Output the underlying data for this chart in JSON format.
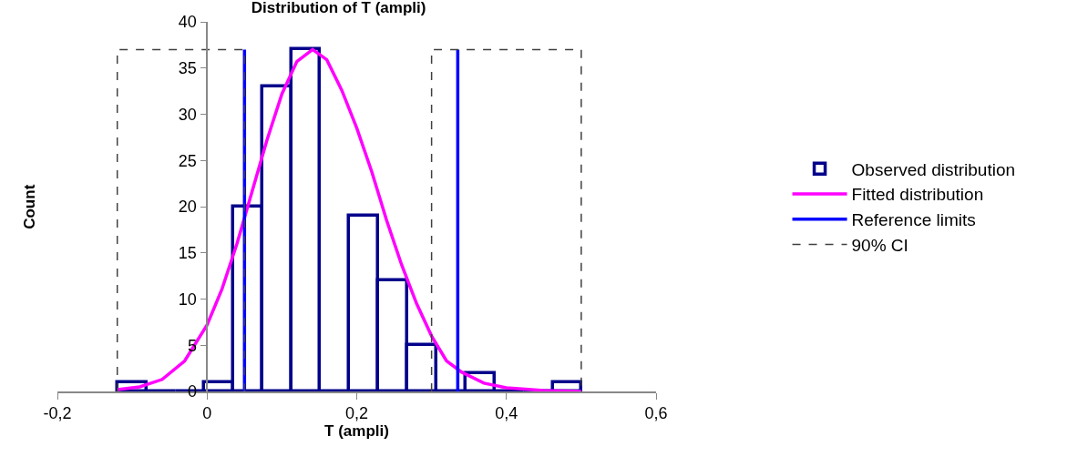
{
  "chart_data": {
    "type": "histogram",
    "title": "Distribution of T (ampli)",
    "xlabel": "T (ampli)",
    "ylabel": "Count",
    "xlim": [
      -0.2,
      0.6
    ],
    "xticks": [
      {
        "value": -0.2,
        "label": "-0,2"
      },
      0,
      {
        "value": 0.2,
        "label": "0,2"
      },
      {
        "value": 0.4,
        "label": "0,4"
      },
      {
        "value": 0.6,
        "label": "0,6"
      }
    ],
    "ylim": [
      0,
      40
    ],
    "yticks": [
      0,
      5,
      10,
      15,
      20,
      25,
      30,
      35,
      40
    ],
    "legend": "right",
    "series": [
      {
        "name": "Observed distribution",
        "color": "#00008b",
        "bins": [
          -0.12,
          -0.081,
          -0.042,
          -0.004,
          0.035,
          0.074,
          0.113,
          0.151,
          0.19,
          0.229,
          0.268,
          0.306,
          0.345,
          0.384,
          0.423,
          0.462,
          0.5
        ],
        "values": [
          1,
          0,
          0,
          1,
          20,
          33,
          37,
          0,
          19,
          12,
          5,
          0,
          2,
          0,
          0,
          1
        ]
      },
      {
        "name": "Fitted distribution",
        "type": "line",
        "color": "#ff00ff",
        "x": [
          -0.12,
          -0.09,
          -0.06,
          -0.03,
          0,
          0.02,
          0.04,
          0.06,
          0.08,
          0.1,
          0.12,
          0.141,
          0.16,
          0.18,
          0.2,
          0.22,
          0.24,
          0.26,
          0.28,
          0.3,
          0.32,
          0.34,
          0.37,
          0.4,
          0.45,
          0.5
        ],
        "values": [
          0.2,
          0.5,
          1.3,
          3.3,
          7.2,
          11.1,
          16.0,
          21.6,
          27.2,
          32.2,
          35.7,
          37,
          35.9,
          32.6,
          28.5,
          23.8,
          18.5,
          13.7,
          9.5,
          6,
          3.3,
          2.1,
          0.9,
          0.4,
          0.1,
          0
        ]
      },
      {
        "name": "Reference limits",
        "type": "line",
        "color": "#0000ff",
        "x": [
          0.05,
          0.05,
          null,
          0.335,
          0.335
        ],
        "values": [
          0,
          37,
          null,
          0,
          37
        ]
      },
      {
        "name": "90% CI",
        "type": "line",
        "color": "#404040",
        "line_style": "dashed",
        "x": [
          -0.12,
          -0.12,
          0.05,
          0.05,
          null,
          0.3,
          0.3,
          0.5,
          0.5
        ],
        "values": [
          0,
          37,
          37,
          0,
          null,
          0,
          37,
          37,
          0
        ]
      }
    ]
  }
}
